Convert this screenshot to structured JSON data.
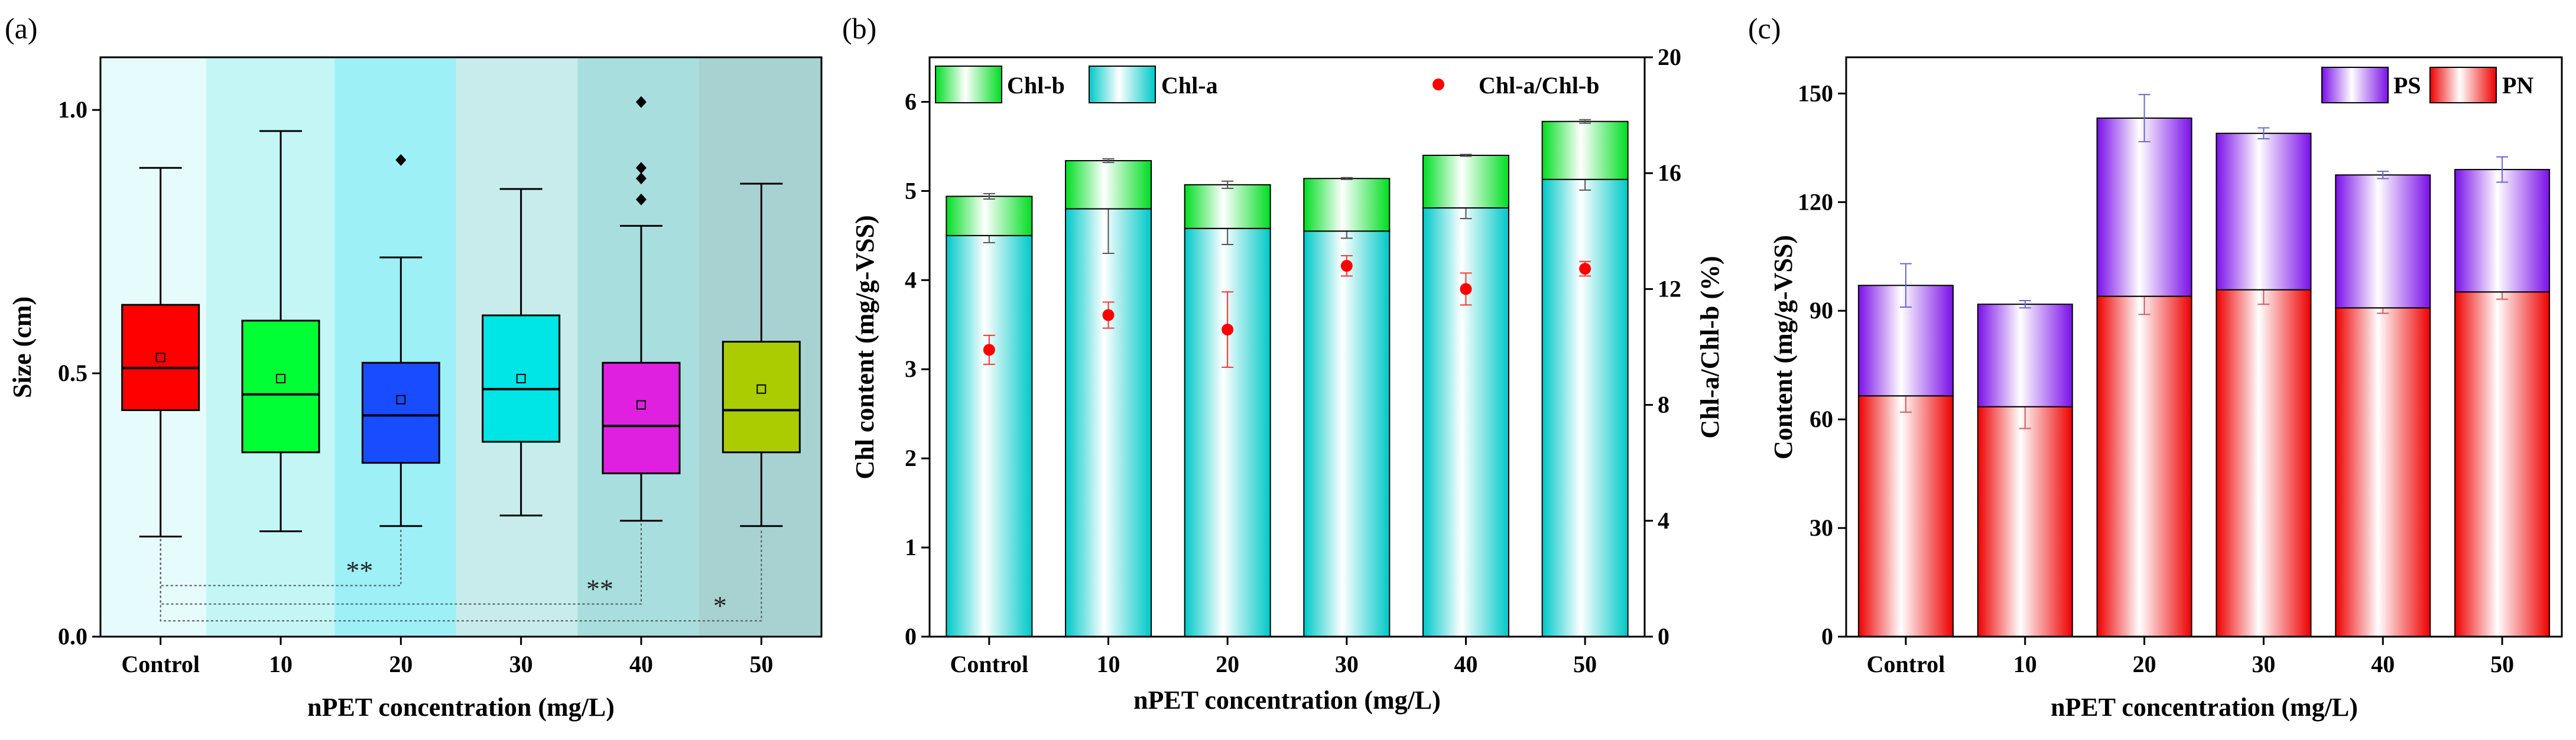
{
  "chart_data": [
    {
      "type": "box",
      "panel_label": "(a)",
      "xlabel": "nPET concentration (mg/L)",
      "ylabel": "Size (cm)",
      "ylim": [
        0,
        1.1
      ],
      "yticks": [
        "0.0",
        "0.5",
        "1.0"
      ],
      "ytick_values": [
        0,
        0.5,
        1.0
      ],
      "categories": [
        "Control",
        "10",
        "20",
        "30",
        "40",
        "50"
      ],
      "boxes": [
        {
          "whisker_low": 0.19,
          "q1": 0.43,
          "median": 0.51,
          "q3": 0.63,
          "whisker_high": 0.89,
          "mean": 0.53,
          "outliers": []
        },
        {
          "whisker_low": 0.2,
          "q1": 0.35,
          "median": 0.46,
          "q3": 0.6,
          "whisker_high": 0.96,
          "mean": 0.49,
          "outliers": []
        },
        {
          "whisker_low": 0.21,
          "q1": 0.33,
          "median": 0.42,
          "q3": 0.52,
          "whisker_high": 0.72,
          "mean": 0.45,
          "outliers": [
            0.905
          ]
        },
        {
          "whisker_low": 0.23,
          "q1": 0.37,
          "median": 0.47,
          "q3": 0.61,
          "whisker_high": 0.85,
          "mean": 0.49,
          "outliers": []
        },
        {
          "whisker_low": 0.22,
          "q1": 0.31,
          "median": 0.4,
          "q3": 0.52,
          "whisker_high": 0.78,
          "mean": 0.44,
          "outliers": [
            0.83,
            0.87,
            0.89,
            1.015
          ]
        },
        {
          "whisker_low": 0.21,
          "q1": 0.35,
          "median": 0.43,
          "q3": 0.56,
          "whisker_high": 0.86,
          "mean": 0.47,
          "outliers": []
        }
      ],
      "box_colors": [
        "#ff0000",
        "#00ff33",
        "#1a4cff",
        "#00e5e5",
        "#e020e0",
        "#aacc00"
      ],
      "band_colors": [
        "#e6fbfb",
        "#c4f6f6",
        "#9cf0f6",
        "#c8ecec",
        "#a8dede",
        "#a8d2d2"
      ],
      "significance": [
        {
          "from": "Control",
          "to": "20",
          "label": "**"
        },
        {
          "from": "Control",
          "to": "40",
          "label": "**"
        },
        {
          "from": "Control",
          "to": "50",
          "label": "*"
        }
      ]
    },
    {
      "type": "stacked_bar_dual_axis",
      "panel_label": "(b)",
      "xlabel": "nPET concentration (mg/L)",
      "ylabel": "Chl content (mg/g-VSS)",
      "y2label": "Chl-a/Chl-b (%)",
      "ylim": [
        0,
        6.5
      ],
      "yticks": [
        "0",
        "1",
        "2",
        "3",
        "4",
        "5",
        "6"
      ],
      "ytick_values": [
        0,
        1,
        2,
        3,
        4,
        5,
        6
      ],
      "y2lim": [
        0,
        20
      ],
      "y2ticks": [
        "0",
        "4",
        "8",
        "12",
        "16",
        "20"
      ],
      "y2tick_values": [
        0,
        4,
        8,
        12,
        16,
        20
      ],
      "categories": [
        "Control",
        "10",
        "20",
        "30",
        "40",
        "50"
      ],
      "series": [
        {
          "name": "Chl-a",
          "values": [
            4.5,
            4.8,
            4.58,
            4.55,
            4.81,
            5.13
          ],
          "errors": [
            0.08,
            0.5,
            0.18,
            0.08,
            0.12,
            0.12
          ],
          "color": "#00d4d4"
        },
        {
          "name": "Chl-b",
          "values": [
            0.44,
            0.54,
            0.49,
            0.59,
            0.59,
            0.65
          ],
          "errors": [
            0.03,
            0.02,
            0.04,
            0.01,
            0.01,
            0.02
          ],
          "color": "#22ee22"
        }
      ],
      "ratio_series": {
        "name": "Chl-a/Chl-b",
        "axis": "right",
        "values": [
          9.9,
          11.1,
          10.6,
          12.8,
          12.0,
          12.7
        ],
        "errors": [
          0.5,
          0.45,
          1.3,
          0.35,
          0.55,
          0.25
        ],
        "color": "#ff0000"
      },
      "legend": [
        "Chl-b",
        "Chl-a",
        "Chl-a/Chl-b"
      ]
    },
    {
      "type": "stacked_bar",
      "panel_label": "(c)",
      "xlabel": "nPET concentration (mg/L)",
      "ylabel": "Content (mg/g-VSS)",
      "ylim": [
        0,
        160
      ],
      "yticks": [
        "0",
        "30",
        "60",
        "90",
        "120",
        "150"
      ],
      "ytick_values": [
        0,
        30,
        60,
        90,
        120,
        150
      ],
      "categories": [
        "Control",
        "10",
        "20",
        "30",
        "40",
        "50"
      ],
      "series": [
        {
          "name": "PN",
          "values": [
            66.5,
            63.5,
            94.0,
            95.8,
            90.8,
            95.2
          ],
          "errors": [
            4.5,
            6.0,
            5.0,
            4.0,
            1.5,
            2.0
          ],
          "color": "#ee1111"
        },
        {
          "name": "PS",
          "values": [
            30.5,
            28.3,
            49.2,
            43.2,
            36.7,
            33.8
          ],
          "errors": [
            6.0,
            1.0,
            6.5,
            1.5,
            1.0,
            3.5
          ],
          "color": "#8822ee"
        }
      ],
      "legend": [
        "PS",
        "PN"
      ]
    }
  ]
}
